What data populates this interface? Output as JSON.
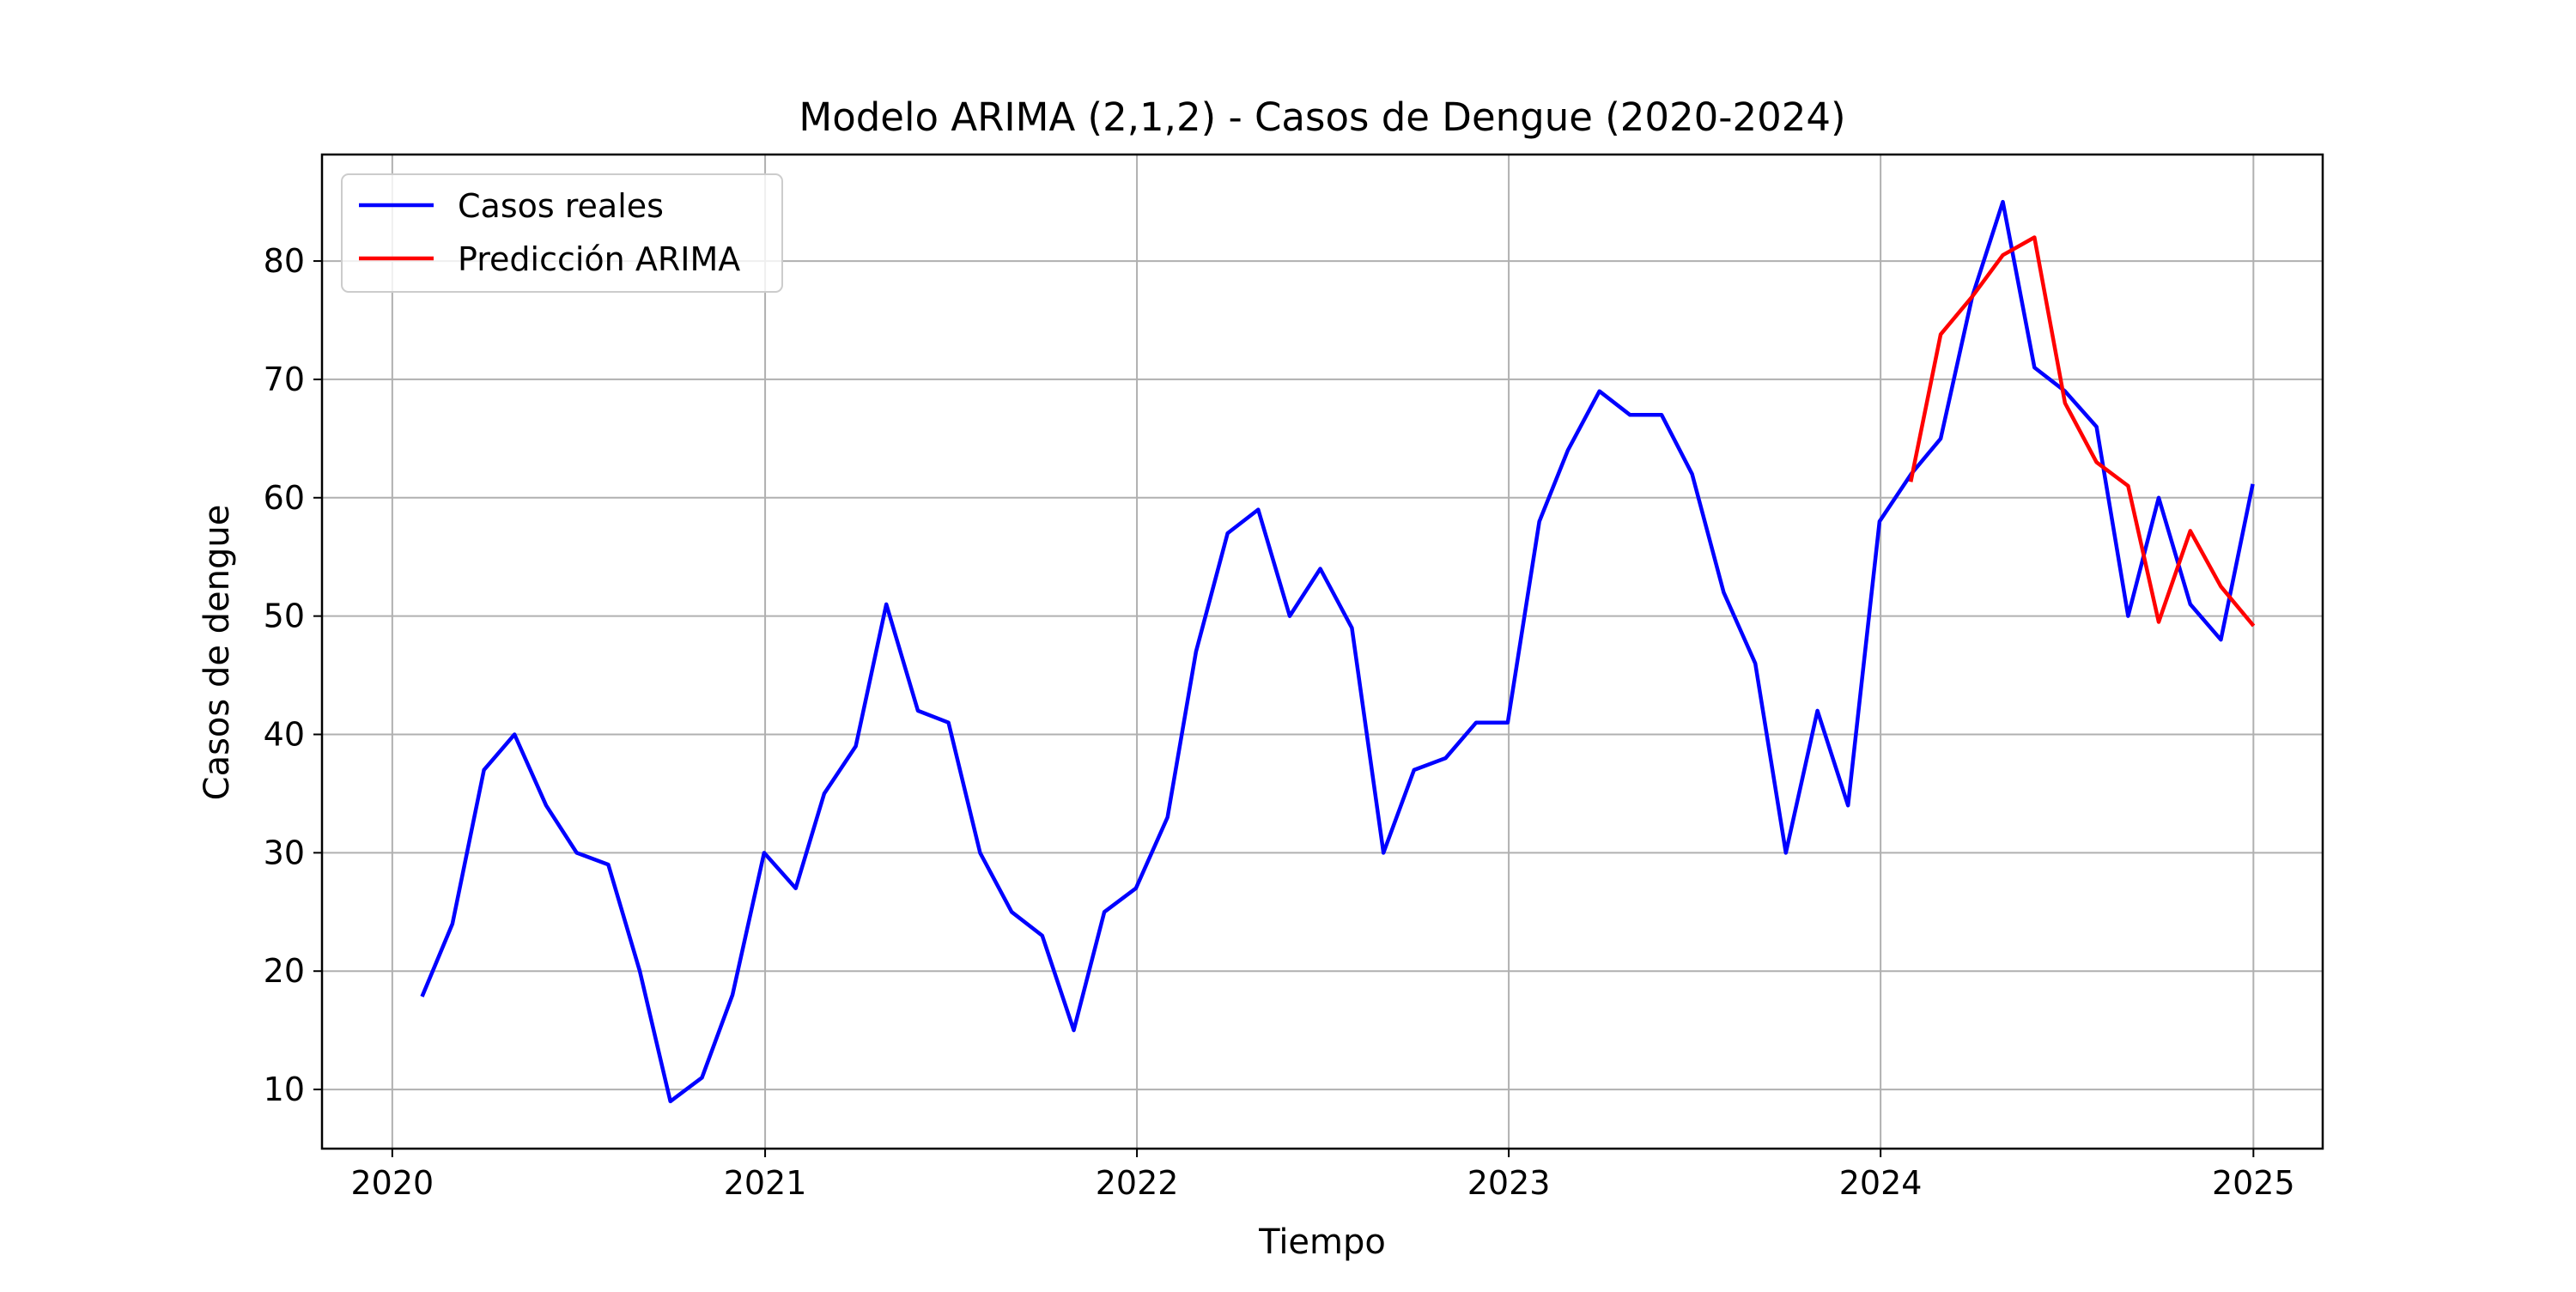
{
  "chart_data": {
    "type": "line",
    "title": "Modelo ARIMA (2,1,2) - Casos de Dengue (2020-2024)",
    "xlabel": "Tiempo",
    "ylabel": "Casos de dengue",
    "x_axis": "date",
    "xlim": [
      "2019-10-24",
      "2025-03-10"
    ],
    "ylim": [
      5,
      89
    ],
    "x_ticks": [
      "2020",
      "2021",
      "2022",
      "2023",
      "2024",
      "2025"
    ],
    "y_ticks": [
      10,
      20,
      30,
      40,
      50,
      60,
      70,
      80
    ],
    "grid": true,
    "legend_position": "top-left",
    "series": [
      {
        "name": "Casos reales",
        "color": "#0000ff",
        "x": [
          "2020-01-31",
          "2020-02-29",
          "2020-03-31",
          "2020-04-30",
          "2020-05-31",
          "2020-06-30",
          "2020-07-31",
          "2020-08-31",
          "2020-09-30",
          "2020-10-31",
          "2020-11-30",
          "2020-12-31",
          "2021-01-31",
          "2021-02-28",
          "2021-03-31",
          "2021-04-30",
          "2021-05-31",
          "2021-06-30",
          "2021-07-31",
          "2021-08-31",
          "2021-09-30",
          "2021-10-31",
          "2021-11-30",
          "2021-12-31",
          "2022-01-31",
          "2022-02-28",
          "2022-03-31",
          "2022-04-30",
          "2022-05-31",
          "2022-06-30",
          "2022-07-31",
          "2022-08-31",
          "2022-09-30",
          "2022-10-31",
          "2022-11-30",
          "2022-12-31",
          "2023-01-31",
          "2023-02-28",
          "2023-03-31",
          "2023-04-30",
          "2023-05-31",
          "2023-06-30",
          "2023-07-31",
          "2023-08-31",
          "2023-09-30",
          "2023-10-31",
          "2023-11-30",
          "2023-12-31",
          "2024-01-31",
          "2024-02-29",
          "2024-03-31",
          "2024-04-30",
          "2024-05-31",
          "2024-06-30",
          "2024-07-31",
          "2024-08-31",
          "2024-09-30",
          "2024-10-31",
          "2024-11-30",
          "2024-12-31"
        ],
        "y": [
          18,
          24,
          37,
          40,
          34,
          30,
          29,
          20,
          9,
          11,
          18,
          30,
          27,
          35,
          39,
          51,
          42,
          41,
          30,
          25,
          23,
          15,
          25,
          27,
          33,
          47,
          57,
          59,
          50,
          54,
          49,
          30,
          37,
          38,
          41,
          41,
          58,
          64,
          69,
          67,
          67,
          62,
          52,
          46,
          30,
          42,
          34,
          58,
          62,
          65,
          77,
          85,
          71,
          69,
          66,
          50,
          60,
          51,
          48,
          61
        ]
      },
      {
        "name": "Predicción ARIMA",
        "color": "#ff0000",
        "x": [
          "2024-01-31",
          "2024-02-29",
          "2024-03-31",
          "2024-04-30",
          "2024-05-31",
          "2024-06-30",
          "2024-07-31",
          "2024-08-31",
          "2024-09-30",
          "2024-10-31",
          "2024-11-30",
          "2024-12-31"
        ],
        "y": [
          61.5,
          73.8,
          77,
          80.5,
          82,
          68,
          63,
          61,
          49.5,
          57.2,
          52.5,
          49.3
        ]
      }
    ]
  }
}
